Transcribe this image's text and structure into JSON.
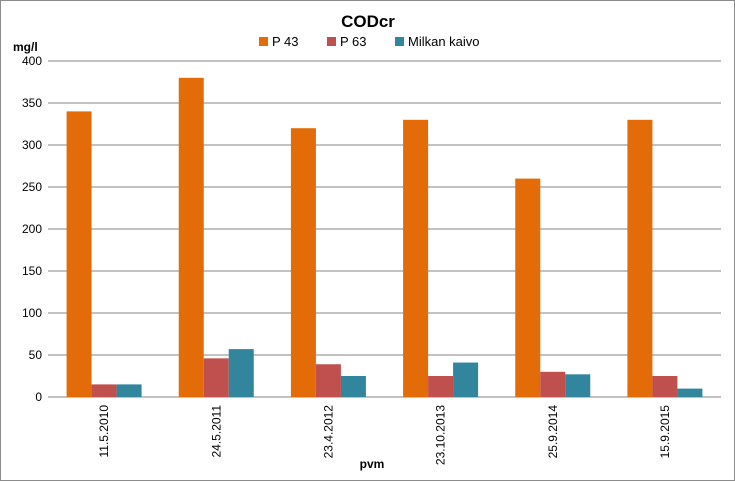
{
  "chart_data": {
    "type": "bar",
    "title": "CODcr",
    "ylabel": "mg/l",
    "xlabel": "pvm",
    "ylim": [
      0,
      400
    ],
    "yticks": [
      "0",
      "50",
      "100",
      "150",
      "200",
      "250",
      "300",
      "350",
      "400"
    ],
    "grid": true,
    "legend": "top",
    "categories": [
      "11.5.2010",
      "24.5.2011",
      "23.4.2012",
      "23.10.2013",
      "25.9.2014",
      "15.9.2015"
    ],
    "series": [
      {
        "name": "P 43",
        "color": "#E36C09",
        "values": [
          340,
          380,
          320,
          330,
          260,
          330
        ]
      },
      {
        "name": "P 63",
        "color": "#C0504D",
        "values": [
          15,
          46,
          39,
          25,
          30,
          25
        ]
      },
      {
        "name": "Milkan kaivo",
        "color": "#31859C",
        "values": [
          15,
          57,
          25,
          41,
          27,
          10
        ]
      }
    ]
  }
}
